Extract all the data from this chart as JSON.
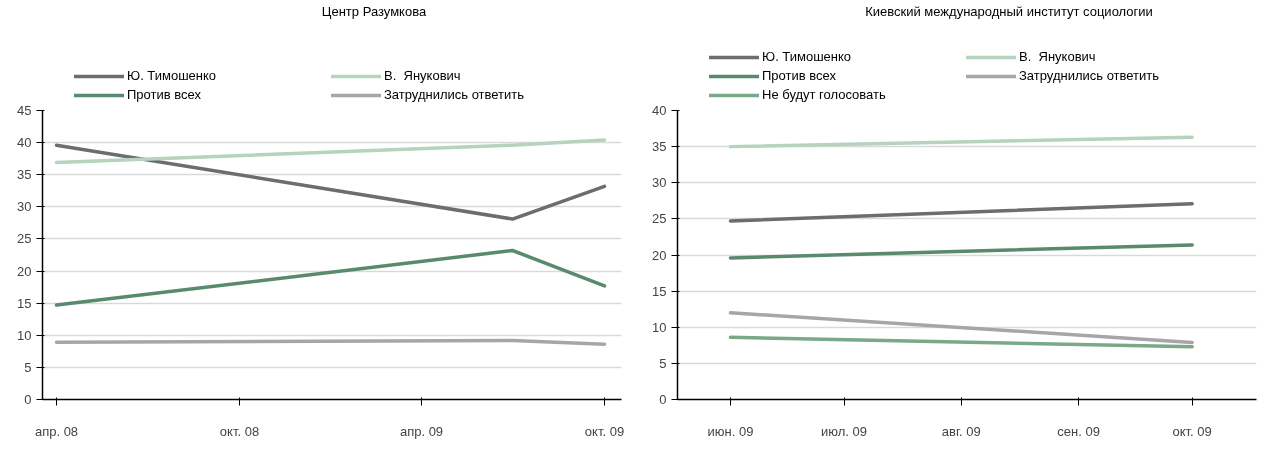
{
  "chart_data": [
    {
      "type": "line",
      "title": "Центр Разумкова",
      "x": [
        "2008-04-15",
        "2009-07-15",
        "2009-10-15"
      ],
      "xlim": [
        "2008-04-01",
        "2009-11-01"
      ],
      "xticks": [
        {
          "value": "2008-04-15",
          "label": "апр. 08"
        },
        {
          "value": "2008-10-15",
          "label": "окт. 08"
        },
        {
          "value": "2009-04-15",
          "label": "апр. 09"
        },
        {
          "value": "2009-10-15",
          "label": "окт. 09"
        }
      ],
      "ylim": [
        0,
        45
      ],
      "yticks": [
        0,
        5,
        10,
        15,
        20,
        25,
        30,
        35,
        40,
        45
      ],
      "grid": "y",
      "legend": "top",
      "series": [
        {
          "name": "Ю. Тимошенко",
          "color": "#6d6d6d",
          "values": [
            39.6,
            28.1,
            33.2
          ]
        },
        {
          "name": "В.  Янукович",
          "color": "#b5d3bd",
          "values": [
            36.9,
            39.6,
            40.4
          ]
        },
        {
          "name": "Против всех",
          "color": "#5a8a6e",
          "values": [
            14.7,
            23.2,
            17.7
          ]
        },
        {
          "name": "Затруднились ответить",
          "color": "#a6a6a6",
          "values": [
            8.9,
            9.2,
            8.6
          ]
        }
      ]
    },
    {
      "type": "line",
      "title": "Киевский международный институт социологии",
      "x": [
        "2009-06-15",
        "2009-10-15"
      ],
      "xlim": [
        "2009-06-01",
        "2009-11-01"
      ],
      "xticks": [
        {
          "value": "2009-06-15",
          "label": "июн. 09"
        },
        {
          "value": "2009-07-15",
          "label": "июл. 09"
        },
        {
          "value": "2009-08-15",
          "label": "авг. 09"
        },
        {
          "value": "2009-09-15",
          "label": "сен. 09"
        },
        {
          "value": "2009-10-15",
          "label": "окт. 09"
        }
      ],
      "ylim": [
        0,
        40
      ],
      "yticks": [
        0,
        5,
        10,
        15,
        20,
        25,
        30,
        35,
        40
      ],
      "grid": "y",
      "legend": "top",
      "series": [
        {
          "name": "Ю. Тимошенко",
          "color": "#6d6d6d",
          "values": [
            24.7,
            27.1
          ]
        },
        {
          "name": "В.  Янукович",
          "color": "#b5d3bd",
          "values": [
            35.0,
            36.3
          ]
        },
        {
          "name": "Против всех",
          "color": "#5a8a6e",
          "values": [
            19.6,
            21.4
          ]
        },
        {
          "name": "Затруднились ответить",
          "color": "#a6a6a6",
          "values": [
            12.0,
            7.9
          ]
        },
        {
          "name": "Не будут голосовать",
          "color": "#7aa987",
          "values": [
            8.6,
            7.3
          ]
        }
      ]
    }
  ]
}
